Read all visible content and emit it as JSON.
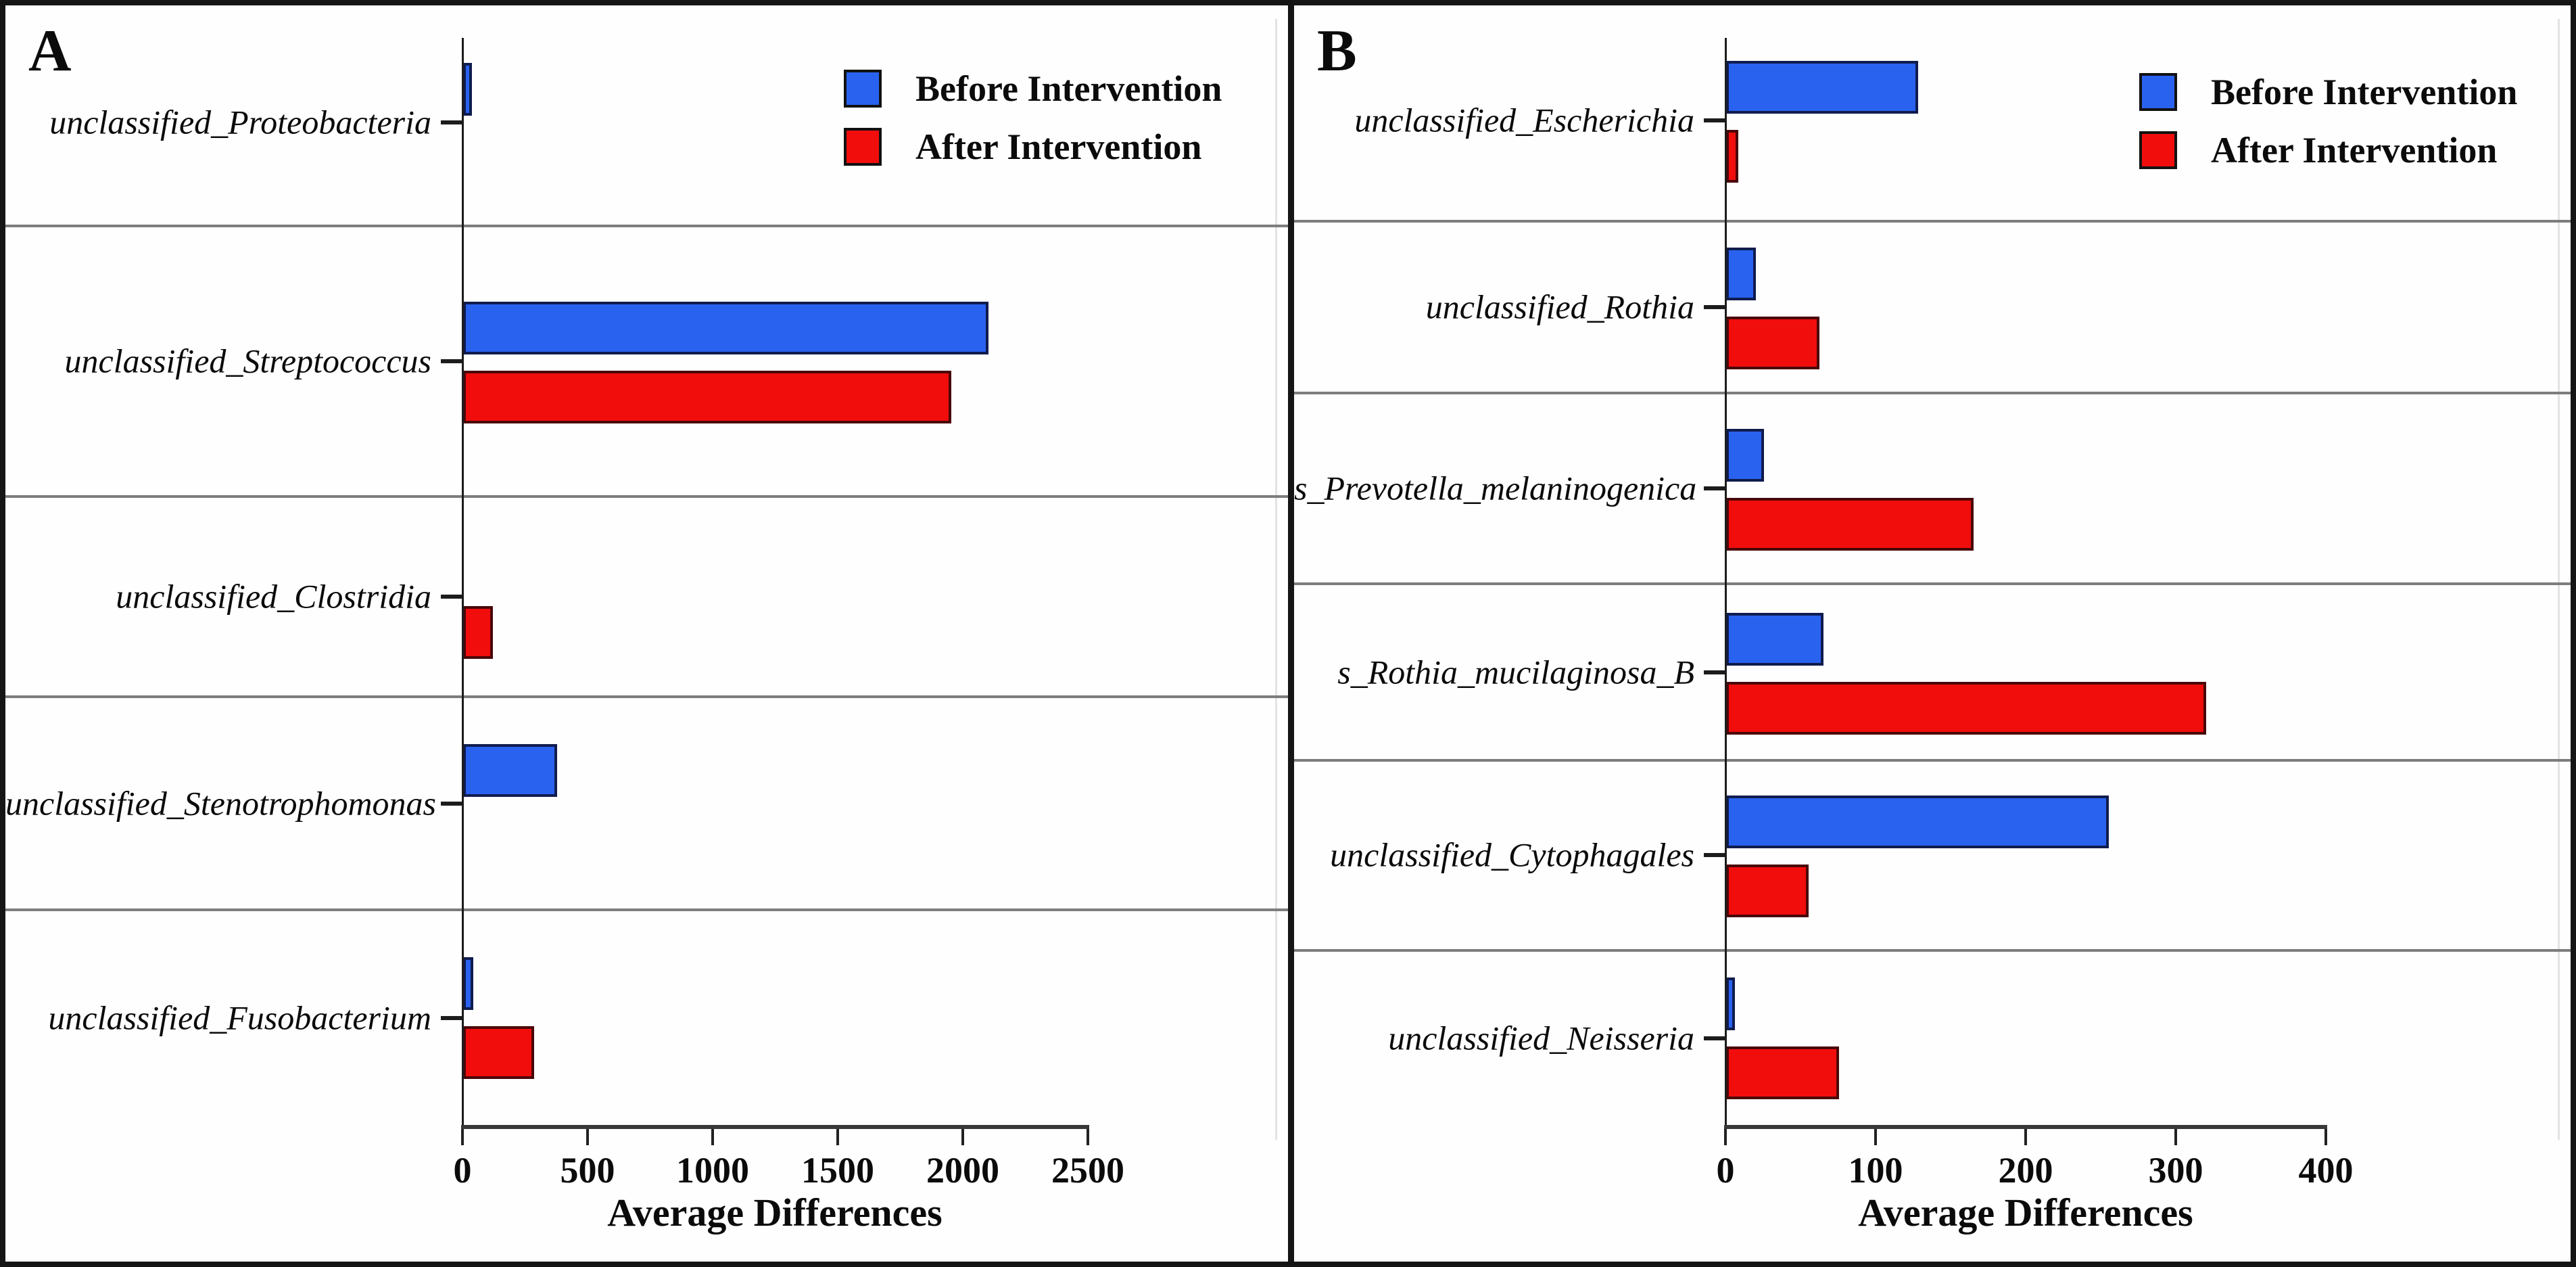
{
  "figure": {
    "background": "#fefefe",
    "border_color": "#151515",
    "separator_color": "#7d7d7d"
  },
  "colors": {
    "before_intervention": "#2a62f0",
    "after_intervention": "#f20d0d",
    "bar_border_before": "#101c4e",
    "bar_border_after": "#4a0708",
    "axis": "#1c1c1c"
  },
  "chart_data": [
    {
      "type": "bar",
      "orientation": "horizontal",
      "panel_label": "A",
      "categories": [
        "unclassified_Proteobacteria",
        "unclassified_Streptococcus",
        "unclassified_Clostridia",
        "unclassified_Stenotrophomonas",
        "unclassified_Fusobacterium"
      ],
      "series": [
        {
          "name": "Before Intervention",
          "color": "#2a62f0",
          "values": [
            35,
            2100,
            0,
            375,
            40
          ]
        },
        {
          "name": "After Intervention",
          "color": "#f20d0d",
          "values": [
            0,
            1950,
            120,
            0,
            285
          ]
        }
      ],
      "xlabel": "Average Differences",
      "xlim": [
        0,
        2500
      ],
      "xticks": [
        0,
        500,
        1000,
        1500,
        2000,
        2500
      ],
      "grid": "row-separators-only",
      "legend_position": "top-right",
      "row_weights": [
        305,
        400,
        295,
        315,
        315
      ]
    },
    {
      "type": "bar",
      "orientation": "horizontal",
      "panel_label": "B",
      "categories": [
        "unclassified_Escherichia",
        "unclassified_Rothia",
        "s_Prevotella_melaninogenica",
        "s_Rothia_mucilaginosa_B",
        "unclassified_Cytophagales",
        "unclassified_Neisseria"
      ],
      "series": [
        {
          "name": "Before Intervention",
          "color": "#2a62f0",
          "values": [
            128,
            20,
            25,
            65,
            255,
            6
          ]
        },
        {
          "name": "After Intervention",
          "color": "#f20d0d",
          "values": [
            8,
            62,
            165,
            320,
            55,
            75
          ]
        }
      ],
      "xlabel": "Average Differences",
      "xlim": [
        0,
        400
      ],
      "xticks": [
        0,
        100,
        200,
        300,
        400
      ],
      "grid": "row-separators-only",
      "legend_position": "top-right",
      "row_weights": [
        300,
        255,
        283,
        261,
        282,
        257
      ]
    }
  ]
}
